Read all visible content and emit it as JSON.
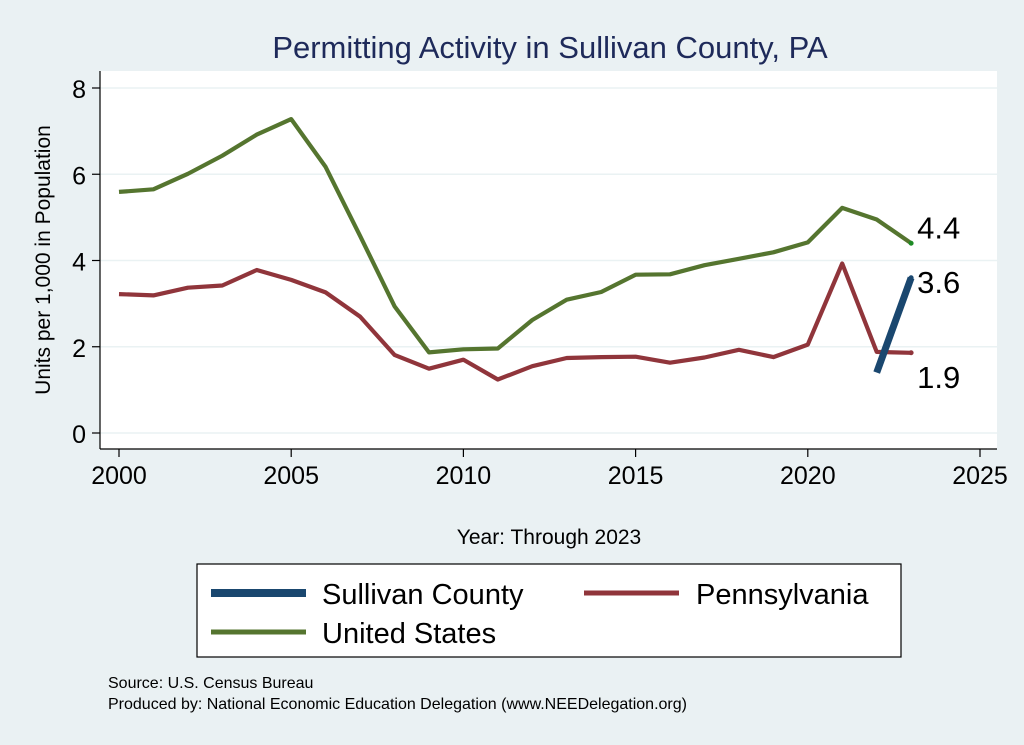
{
  "chart_data": {
    "type": "line",
    "title": "Permitting Activity in Sullivan County, PA",
    "xlabel": "Year: Through 2023",
    "ylabel": "Units per 1,000 in Population",
    "xlim": [
      2000,
      2025
    ],
    "ylim": [
      0,
      8
    ],
    "xticks": [
      "2000",
      "2005",
      "2010",
      "2015",
      "2020",
      "2025"
    ],
    "yticks": [
      "0",
      "2",
      "4",
      "6",
      "8"
    ],
    "grid": "horizontal",
    "legend_position": "bottom",
    "series": [
      {
        "name": "Sullivan County",
        "color": "#1a476f",
        "x": [
          2022,
          2023
        ],
        "values": [
          1.4,
          3.6
        ],
        "end_label": "3.6"
      },
      {
        "name": "Pennsylvania",
        "color": "#90353b",
        "x": [
          2000,
          2001,
          2002,
          2003,
          2004,
          2005,
          2006,
          2007,
          2008,
          2009,
          2010,
          2011,
          2012,
          2013,
          2014,
          2015,
          2016,
          2017,
          2018,
          2019,
          2020,
          2021,
          2022,
          2023
        ],
        "values": [
          3.22,
          3.19,
          3.37,
          3.42,
          3.78,
          3.55,
          3.26,
          2.7,
          1.81,
          1.49,
          1.7,
          1.24,
          1.55,
          1.74,
          1.76,
          1.77,
          1.63,
          1.75,
          1.93,
          1.76,
          2.05,
          3.93,
          1.88,
          1.86
        ],
        "end_label": "1.9"
      },
      {
        "name": "United States",
        "color": "#55752f",
        "x": [
          2000,
          2001,
          2002,
          2003,
          2004,
          2005,
          2006,
          2007,
          2008,
          2009,
          2010,
          2011,
          2012,
          2013,
          2014,
          2015,
          2016,
          2017,
          2018,
          2019,
          2020,
          2021,
          2022,
          2023
        ],
        "values": [
          5.59,
          5.65,
          6.01,
          6.43,
          6.92,
          7.28,
          6.17,
          4.57,
          2.94,
          1.87,
          1.94,
          1.96,
          2.62,
          3.09,
          3.27,
          3.67,
          3.68,
          3.89,
          4.04,
          4.19,
          4.42,
          5.22,
          4.95,
          4.4
        ],
        "end_label": "4.4"
      }
    ],
    "legend_order": [
      0,
      1,
      2
    ]
  },
  "notes": {
    "source": "Source: U.S. Census Bureau",
    "produced_by": "Produced by: National Economic Education Delegation (www.NEEDelegation.org)"
  }
}
